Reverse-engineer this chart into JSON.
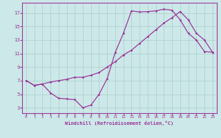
{
  "background_color": "#cce8e8",
  "grid_color": "#aacccc",
  "line_color": "#993399",
  "xlabel": "Windchill (Refroidissement éolien,°C)",
  "xlim_min": -0.5,
  "xlim_max": 23.5,
  "ylim_min": 2.2,
  "ylim_max": 18.5,
  "xticks": [
    0,
    1,
    2,
    3,
    4,
    5,
    6,
    7,
    8,
    9,
    10,
    11,
    12,
    13,
    14,
    15,
    16,
    17,
    18,
    19,
    20,
    21,
    22,
    23
  ],
  "yticks": [
    3,
    5,
    7,
    9,
    11,
    13,
    15,
    17
  ],
  "curve1_x": [
    0,
    1,
    2,
    3,
    4,
    5,
    6,
    7,
    8,
    9,
    10,
    11,
    12,
    13,
    14,
    15,
    16,
    17,
    18,
    19,
    20,
    21,
    22,
    23
  ],
  "curve1_y": [
    7.0,
    6.3,
    6.5,
    5.2,
    4.4,
    4.3,
    4.2,
    3.0,
    3.4,
    5.0,
    7.3,
    11.2,
    14.0,
    17.3,
    17.15,
    17.2,
    17.3,
    17.55,
    17.4,
    16.0,
    14.0,
    13.0,
    11.3,
    11.2
  ],
  "curve2_x": [
    0,
    1,
    2,
    3,
    4,
    5,
    6,
    7,
    8,
    9,
    10,
    11,
    12,
    13,
    14,
    15,
    16,
    17,
    18,
    19,
    20,
    21,
    22,
    23
  ],
  "curve2_y": [
    7.0,
    6.3,
    6.5,
    6.8,
    7.0,
    7.2,
    7.5,
    7.5,
    7.8,
    8.2,
    9.0,
    9.8,
    10.8,
    11.5,
    12.5,
    13.5,
    14.5,
    15.5,
    16.3,
    17.2,
    16.0,
    14.0,
    13.0,
    11.2
  ],
  "spine_color": "#993399",
  "tick_label_color": "#993399",
  "xlabel_fontsize": 5.0,
  "xtick_fontsize": 4.2,
  "ytick_fontsize": 5.2,
  "linewidth": 0.9,
  "markersize": 1.8
}
